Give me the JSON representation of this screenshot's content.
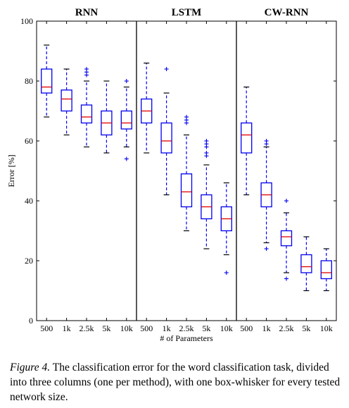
{
  "chart_data": {
    "type": "boxplot",
    "panels": [
      {
        "title": "RNN",
        "boxes": [
          {
            "category": "500",
            "whisker_low": 68,
            "q1": 76,
            "median": 78,
            "q3": 84,
            "whisker_high": 92,
            "outliers": []
          },
          {
            "category": "1k",
            "whisker_low": 62,
            "q1": 70,
            "median": 74,
            "q3": 77,
            "whisker_high": 84,
            "outliers": []
          },
          {
            "category": "2.5k",
            "whisker_low": 58,
            "q1": 66,
            "median": 68,
            "q3": 72,
            "whisker_high": 80,
            "outliers": [
              82,
              83,
              84
            ]
          },
          {
            "category": "5k",
            "whisker_low": 56,
            "q1": 62,
            "median": 66,
            "q3": 70,
            "whisker_high": 80,
            "outliers": []
          },
          {
            "category": "10k",
            "whisker_low": 58,
            "q1": 64,
            "median": 66,
            "q3": 70,
            "whisker_high": 78,
            "outliers": [
              54,
              80
            ]
          }
        ]
      },
      {
        "title": "LSTM",
        "boxes": [
          {
            "category": "500",
            "whisker_low": 56,
            "q1": 66,
            "median": 70,
            "q3": 74,
            "whisker_high": 86,
            "outliers": []
          },
          {
            "category": "1k",
            "whisker_low": 42,
            "q1": 56,
            "median": 60,
            "q3": 66,
            "whisker_high": 76,
            "outliers": [
              84
            ]
          },
          {
            "category": "2.5k",
            "whisker_low": 30,
            "q1": 38,
            "median": 43,
            "q3": 49,
            "whisker_high": 62,
            "outliers": [
              66,
              67,
              68
            ]
          },
          {
            "category": "5k",
            "whisker_low": 24,
            "q1": 34,
            "median": 38,
            "q3": 42,
            "whisker_high": 52,
            "outliers": [
              55,
              56,
              58,
              59,
              60
            ]
          },
          {
            "category": "10k",
            "whisker_low": 22,
            "q1": 30,
            "median": 34,
            "q3": 38,
            "whisker_high": 46,
            "outliers": [
              16
            ]
          }
        ]
      },
      {
        "title": "CW-RNN",
        "boxes": [
          {
            "category": "500",
            "whisker_low": 42,
            "q1": 56,
            "median": 62,
            "q3": 66,
            "whisker_high": 78,
            "outliers": []
          },
          {
            "category": "1k",
            "whisker_low": 26,
            "q1": 38,
            "median": 42,
            "q3": 46,
            "whisker_high": 58,
            "outliers": [
              24,
              59,
              60
            ]
          },
          {
            "category": "2.5k",
            "whisker_low": 16,
            "q1": 25,
            "median": 28,
            "q3": 30,
            "whisker_high": 36,
            "outliers": [
              14,
              40
            ]
          },
          {
            "category": "5k",
            "whisker_low": 10,
            "q1": 16,
            "median": 18,
            "q3": 22,
            "whisker_high": 28,
            "outliers": []
          },
          {
            "category": "10k",
            "whisker_low": 10,
            "q1": 14,
            "median": 16,
            "q3": 20,
            "whisker_high": 24,
            "outliers": []
          }
        ]
      }
    ],
    "ylabel": "Error [%]",
    "xlabel": "# of Parameters",
    "ylim": [
      0,
      100
    ],
    "yticks": [
      0,
      20,
      40,
      60,
      80,
      100
    ],
    "grid": false,
    "colors": {
      "box": "#0000ee",
      "median": "#dd0000",
      "axis": "#000000"
    }
  },
  "caption": {
    "label": "Figure 4.",
    "text": "The classification error for the word classification task, divided into three columns (one per method), with one box-whisker for every tested network size."
  }
}
